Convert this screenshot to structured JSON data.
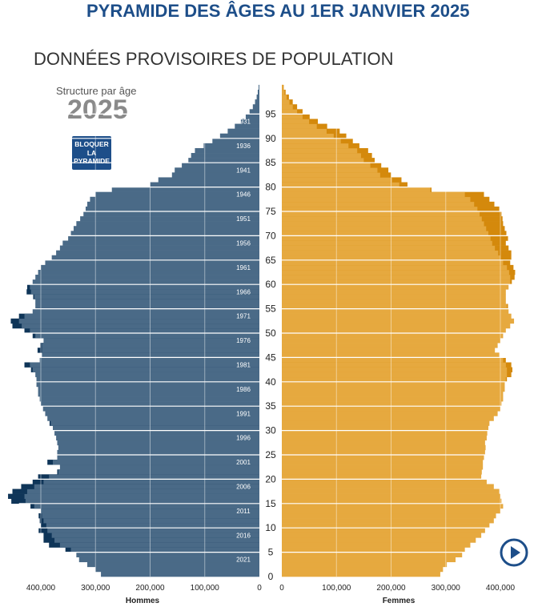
{
  "header": {
    "title": "PYRAMIDE DES ÂGES AU 1ER JANVIER 2025",
    "subtitle": "DONNÉES PROVISOIRES DE POPULATION"
  },
  "controls": {
    "structure_label": "Structure par âge",
    "year": "2025",
    "lock_button_label": "BLOQUER\nLA\nPYRAMIDE",
    "play_icon": "play-circle-icon"
  },
  "colors": {
    "men": "#4a6a87",
    "men_excess": "#0f3558",
    "women": "#e6a93f",
    "women_excess": "#d4890c",
    "title": "#1d4e89"
  },
  "chart_data": {
    "type": "bar",
    "orientation": "horizontal-pyramid",
    "title": "PYRAMIDE DES ÂGES AU 1ER JANVIER 2025",
    "left_label": "Hommes",
    "right_label": "Femmes",
    "x_ticks_left": [
      "400,000",
      "300,000",
      "200,000",
      "100,000",
      "0"
    ],
    "x_ticks_right": [
      "0",
      "100,000",
      "200,000",
      "300,000",
      "400,000"
    ],
    "x_tick_values": [
      0,
      100000,
      200000,
      300000,
      400000
    ],
    "age_ticks": [
      0,
      5,
      10,
      15,
      20,
      25,
      30,
      35,
      40,
      45,
      50,
      55,
      60,
      65,
      70,
      75,
      80,
      85,
      90,
      95
    ],
    "birth_year_ticks": [
      2021,
      2016,
      2011,
      2006,
      2001,
      1996,
      1991,
      1986,
      1981,
      1976,
      1971,
      1966,
      1961,
      1956,
      1951,
      1946,
      1941,
      1936,
      1931
    ],
    "ages": [
      0,
      1,
      2,
      3,
      4,
      5,
      6,
      7,
      8,
      9,
      10,
      11,
      12,
      13,
      14,
      15,
      16,
      17,
      18,
      19,
      20,
      21,
      22,
      23,
      24,
      25,
      26,
      27,
      28,
      29,
      30,
      31,
      32,
      33,
      34,
      35,
      36,
      37,
      38,
      39,
      40,
      41,
      42,
      43,
      44,
      45,
      46,
      47,
      48,
      49,
      50,
      51,
      52,
      53,
      54,
      55,
      56,
      57,
      58,
      59,
      60,
      61,
      62,
      63,
      64,
      65,
      66,
      67,
      68,
      69,
      70,
      71,
      72,
      73,
      74,
      75,
      76,
      77,
      78,
      79,
      80,
      81,
      82,
      83,
      84,
      85,
      86,
      87,
      88,
      89,
      90,
      91,
      92,
      93,
      94,
      95,
      96,
      97,
      98,
      99,
      100
    ],
    "series": [
      {
        "name": "Hommes",
        "side": "left",
        "values": [
          290000,
          300000,
          315000,
          330000,
          335000,
          345000,
          365000,
          375000,
          380000,
          388000,
          390000,
          395000,
          398000,
          400000,
          412000,
          428000,
          430000,
          425000,
          412000,
          395000,
          385000,
          368000,
          365000,
          378000,
          370000,
          370000,
          368000,
          370000,
          372000,
          375000,
          378000,
          382000,
          388000,
          392000,
          396000,
          400000,
          402000,
          405000,
          405000,
          408000,
          408000,
          410000,
          415000,
          420000,
          402000,
          398000,
          398000,
          398000,
          395000,
          410000,
          420000,
          435000,
          440000,
          430000,
          415000,
          410000,
          410000,
          412000,
          418000,
          420000,
          415000,
          410000,
          405000,
          400000,
          392000,
          380000,
          372000,
          365000,
          360000,
          350000,
          345000,
          340000,
          335000,
          328000,
          322000,
          318000,
          315000,
          310000,
          300000,
          270000,
          200000,
          185000,
          160000,
          155000,
          142000,
          130000,
          125000,
          118000,
          102000,
          86000,
          72000,
          58000,
          45000,
          34000,
          25000,
          18000,
          12000,
          8000,
          5000,
          3000,
          1500
        ]
      },
      {
        "name": "Femmes",
        "side": "right",
        "values": [
          290000,
          295000,
          302000,
          318000,
          330000,
          335000,
          345000,
          355000,
          365000,
          372000,
          380000,
          388000,
          392000,
          400000,
          405000,
          402000,
          400000,
          398000,
          388000,
          375000,
          365000,
          366000,
          368000,
          368000,
          370000,
          372000,
          373000,
          372000,
          375000,
          376000,
          378000,
          380000,
          388000,
          395000,
          400000,
          402000,
          405000,
          405000,
          408000,
          408000,
          410000,
          412000,
          412000,
          410000,
          405000,
          398000,
          390000,
          395000,
          400000,
          405000,
          410000,
          418000,
          425000,
          420000,
          415000,
          412000,
          410000,
          410000,
          410000,
          415000,
          418000,
          418000,
          416000,
          412000,
          405000,
          400000,
          396000,
          390000,
          385000,
          382000,
          378000,
          374000,
          370000,
          366000,
          362000,
          358000,
          352000,
          345000,
          335000,
          272000,
          215000,
          202000,
          180000,
          175000,
          162000,
          150000,
          145000,
          138000,
          122000,
          108000,
          95000,
          82000,
          64000,
          50000,
          38000,
          28000,
          20000,
          14000,
          9000,
          5000,
          2500
        ]
      },
      {
        "name": "Excédent",
        "side": "right-outline",
        "values": [
          0,
          0,
          0,
          0,
          0,
          0,
          0,
          0,
          0,
          0,
          0,
          0,
          0,
          0,
          0,
          0,
          0,
          0,
          0,
          0,
          0,
          0,
          0,
          0,
          0,
          0,
          0,
          0,
          0,
          0,
          0,
          0,
          0,
          0,
          0,
          0,
          0,
          0,
          0,
          0,
          0,
          0,
          0,
          0,
          0,
          0,
          0,
          0,
          0,
          0,
          0,
          0,
          0,
          0,
          0,
          0,
          0,
          0,
          0,
          0,
          0,
          0,
          0,
          0,
          0,
          0,
          0,
          0,
          0,
          0,
          0,
          0,
          0,
          0,
          0,
          0,
          0,
          0,
          0,
          0,
          0,
          0,
          0,
          0,
          0,
          0,
          0,
          0,
          0,
          0,
          0,
          0,
          0,
          0,
          0,
          0,
          0,
          0,
          0,
          0,
          0
        ]
      }
    ],
    "men_excess": [
      0,
      0,
      0,
      0,
      0,
      10000,
      20000,
      20000,
      15000,
      16000,
      10000,
      7000,
      6000,
      0,
      7000,
      26000,
      30000,
      27000,
      24000,
      20000,
      20000,
      2000,
      0,
      10000,
      0,
      0,
      0,
      0,
      0,
      0,
      0,
      2000,
      0,
      0,
      0,
      0,
      0,
      0,
      0,
      0,
      0,
      0,
      3000,
      10000,
      0,
      0,
      8000,
      3000,
      0,
      5000,
      10000,
      17000,
      15000,
      10000,
      0,
      0,
      0,
      2000,
      8000,
      5000,
      0,
      0,
      0,
      0,
      0,
      0,
      0,
      0,
      0,
      0,
      0,
      0,
      0,
      0,
      0,
      0,
      0,
      0,
      0,
      0,
      0,
      0,
      0,
      0,
      0,
      0,
      0,
      0,
      0,
      0,
      0,
      0,
      0,
      0,
      0,
      0,
      0,
      0,
      0,
      0,
      0
    ],
    "women_excess": [
      0,
      0,
      0,
      0,
      0,
      0,
      0,
      0,
      0,
      0,
      0,
      0,
      0,
      0,
      0,
      0,
      0,
      0,
      0,
      0,
      0,
      0,
      0,
      0,
      0,
      0,
      0,
      0,
      0,
      0,
      0,
      0,
      0,
      0,
      0,
      0,
      0,
      0,
      0,
      0,
      2000,
      8000,
      10000,
      10000,
      5000,
      0,
      0,
      0,
      0,
      0,
      0,
      0,
      0,
      0,
      0,
      2000,
      0,
      0,
      0,
      0,
      3000,
      8000,
      11000,
      12000,
      13000,
      20000,
      24000,
      25000,
      25000,
      32000,
      33000,
      34000,
      35000,
      38000,
      40000,
      40000,
      37000,
      35000,
      35000,
      2000,
      15000,
      17000,
      20000,
      20000,
      20000,
      20000,
      20000,
      20000,
      20000,
      22000,
      23000,
      24000,
      19000,
      16000,
      13000,
      10000,
      8000,
      6000,
      4000,
      2000,
      1000
    ],
    "xlim": [
      0,
      440000
    ],
    "ylim": [
      0,
      100
    ]
  }
}
